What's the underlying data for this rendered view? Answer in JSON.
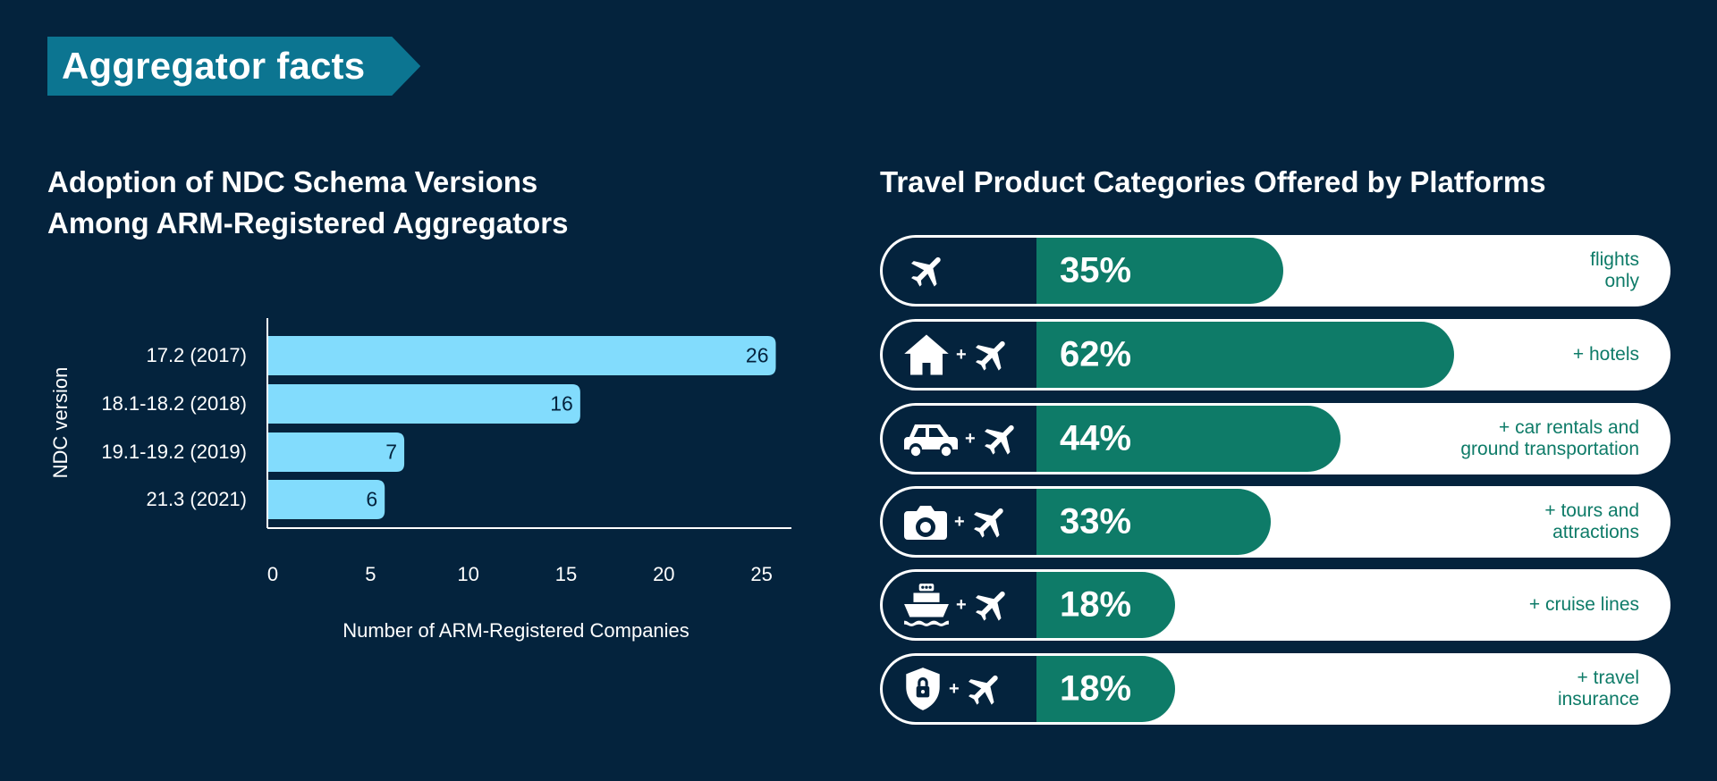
{
  "banner": {
    "title": "Aggregator facts"
  },
  "left_chart": {
    "title_line1": "Adoption of NDC Schema Versions",
    "title_line2": "Among ARM-Registered Aggregators"
  },
  "right_chart": {
    "title": "Travel Product Categories Offered by Platforms"
  },
  "colors": {
    "background": "#04233d",
    "banner": "#0c7591",
    "bar": "#82dcfd",
    "pill_fill": "#0e7b68",
    "pill_text": "#0e7b68"
  },
  "chart_data": [
    {
      "type": "bar",
      "orientation": "horizontal",
      "title": "Adoption of NDC Schema Versions Among ARM-Registered Aggregators",
      "ylabel": "NDC version",
      "xlabel": "Number of ARM-Registered Companies",
      "categories": [
        "17.2 (2017)",
        "18.1-18.2 (2018)",
        "19.1-19.2 (2019)",
        "21.3 (2021)"
      ],
      "values": [
        26,
        16,
        7,
        6
      ],
      "value_labels": [
        "26",
        "16",
        "7",
        "6"
      ],
      "xticks": [
        0,
        5,
        10,
        15,
        20,
        25
      ],
      "xtick_labels": [
        "0",
        "5",
        "10",
        "15",
        "20",
        "25"
      ],
      "xlim": [
        0,
        26.8
      ],
      "grid": false
    },
    {
      "type": "bar",
      "orientation": "horizontal",
      "title": "Travel Product Categories Offered by Platforms",
      "categories": [
        "flights\nonly",
        "+ hotels",
        "+ car rentals and\nground transportation",
        "+ tours and\nattractions",
        "+ cruise lines",
        "+ travel\ninsurance"
      ],
      "values": [
        35,
        62,
        44,
        33,
        18,
        18
      ],
      "value_labels": [
        "35%",
        "62%",
        "44%",
        "33%",
        "18%",
        "18%"
      ],
      "icons": [
        "plane-icon",
        "house-icon",
        "car-icon",
        "camera-icon",
        "ship-icon",
        "shield-lock-icon"
      ],
      "plus_sign": "+",
      "unit": "%",
      "xlim": [
        0,
        100
      ]
    }
  ]
}
